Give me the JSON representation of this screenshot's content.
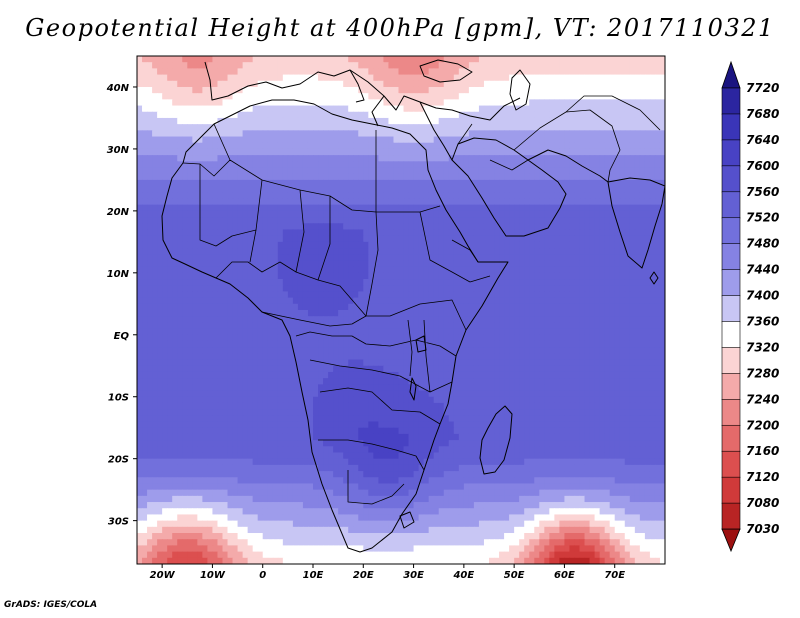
{
  "title": "Geopotential Height at 400hPa [gpm], VT: 2017110321",
  "footer": "GrADS: IGES/COLA",
  "map": {
    "variable": "Geopotential Height",
    "level": "400hPa",
    "units": "gpm",
    "valid_time": "2017110321",
    "lon_range": [
      -25,
      80
    ],
    "lat_range": [
      -37,
      45
    ],
    "lon_ticks": [
      {
        "value": -20,
        "label": "20W"
      },
      {
        "value": -10,
        "label": "10W"
      },
      {
        "value": 0,
        "label": "0"
      },
      {
        "value": 10,
        "label": "10E"
      },
      {
        "value": 20,
        "label": "20E"
      },
      {
        "value": 30,
        "label": "30E"
      },
      {
        "value": 40,
        "label": "40E"
      },
      {
        "value": 50,
        "label": "50E"
      },
      {
        "value": 60,
        "label": "60E"
      },
      {
        "value": 70,
        "label": "70E"
      }
    ],
    "lat_ticks": [
      {
        "value": 40,
        "label": "40N"
      },
      {
        "value": 30,
        "label": "30N"
      },
      {
        "value": 20,
        "label": "20N"
      },
      {
        "value": 10,
        "label": "10N"
      },
      {
        "value": 0,
        "label": "EQ"
      },
      {
        "value": -10,
        "label": "10S"
      },
      {
        "value": -20,
        "label": "20S"
      },
      {
        "value": -30,
        "label": "30S"
      }
    ]
  },
  "colorbar": {
    "levels": [
      7720,
      7680,
      7640,
      7600,
      7560,
      7520,
      7480,
      7440,
      7400,
      7360,
      7320,
      7280,
      7240,
      7200,
      7160,
      7120,
      7080,
      7030
    ],
    "labels": [
      "7720",
      "7680",
      "7640",
      "7600",
      "7560",
      "7520",
      "7480",
      "7440",
      "7400",
      "7360",
      "7320",
      "7280",
      "7240",
      "7200",
      "7160",
      "7120",
      "7080",
      "7030"
    ],
    "top_color": "#1a1480",
    "bottom_color": "#9c1010",
    "colors": [
      "#2b25a0",
      "#3a35b8",
      "#4842c4",
      "#5550cc",
      "#6360d4",
      "#7270dc",
      "#8582e3",
      "#9e9ceb",
      "#c8c6f4",
      "#ffffff",
      "#fbd4d4",
      "#f4aaaa",
      "#ec8888",
      "#e46a6a",
      "#dc4f4f",
      "#d03a3a",
      "#b82424"
    ]
  },
  "features": {
    "anomalies": [
      {
        "name": "low-nw-atlantic",
        "lon": -13,
        "lat": 42,
        "value": 7250,
        "radius_deg": 9
      },
      {
        "name": "low-mediterranean",
        "lon": 30,
        "lat": 43,
        "value": 7230,
        "radius_deg": 10
      },
      {
        "name": "low-sw-atlantic",
        "lon": -15,
        "lat": -38,
        "value": 7150,
        "radius_deg": 10
      },
      {
        "name": "low-sw-indian",
        "lon": 62,
        "lat": -38,
        "value": 7080,
        "radius_deg": 9
      },
      {
        "name": "high-south-africa",
        "lon": 25,
        "lat": -22,
        "value": 7585,
        "radius_deg": 9
      },
      {
        "name": "high-west-africa",
        "lon": 12,
        "lat": 12,
        "value": 7580,
        "radius_deg": 7
      },
      {
        "name": "high-angola",
        "lon": 18,
        "lat": -12,
        "value": 7575,
        "radius_deg": 6
      }
    ]
  }
}
